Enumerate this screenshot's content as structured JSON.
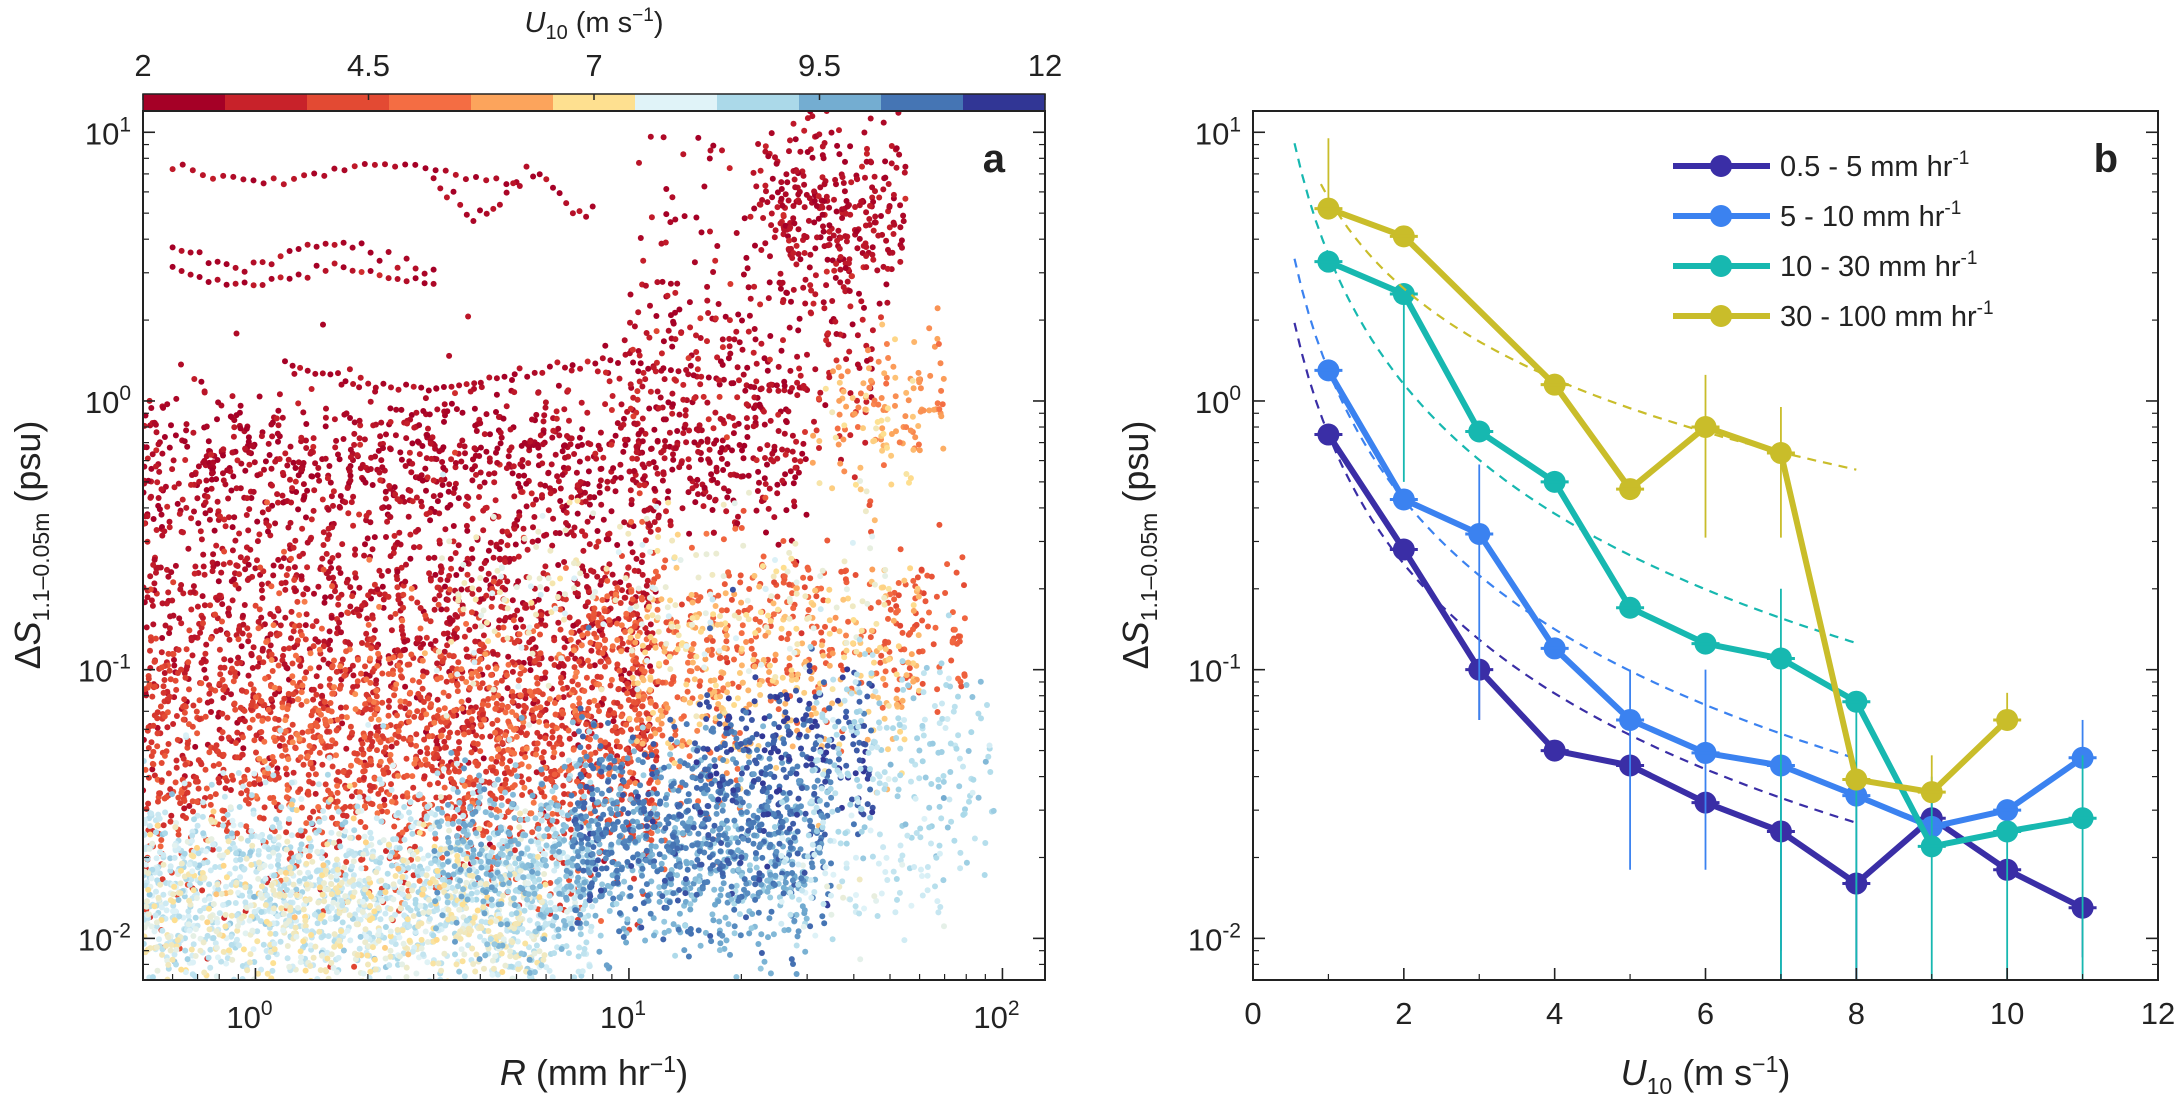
{
  "colorbar": {
    "label": "U10 (m s-1)",
    "label_main": "U",
    "label_sub": "10",
    "label_unit": " (m s",
    "label_sup": "−1",
    "label_close": ")",
    "tick_labels": [
      "2",
      "4.5",
      "7",
      "9.5",
      "12"
    ],
    "tick_values": [
      2,
      4.5,
      7,
      9.5,
      12
    ],
    "colors": [
      "#a50026",
      "#c8222a",
      "#e34a33",
      "#f46d43",
      "#fca45c",
      "#fee090",
      "#e0f3f8",
      "#abd9e9",
      "#74add1",
      "#4575b4",
      "#313695"
    ]
  },
  "chart_data": [
    {
      "panel": "a",
      "type": "scatter",
      "xlabel": "R (mm hr-1)",
      "ylabel": "ΔS1.1–0.05m (psu)",
      "x_scale": "log",
      "y_scale": "log",
      "xlim": [
        0.5,
        130
      ],
      "ylim": [
        0.007,
        12
      ],
      "x_ticks": [
        1,
        10,
        100
      ],
      "x_tick_labels": [
        [
          "10",
          "0"
        ],
        [
          "10",
          "1"
        ],
        [
          "10",
          "2"
        ]
      ],
      "y_ticks": [
        0.01,
        0.1,
        1,
        10
      ],
      "y_tick_labels": [
        [
          "10",
          "-2"
        ],
        [
          "10",
          "-1"
        ],
        [
          "10",
          "0"
        ],
        [
          "10",
          "1"
        ]
      ],
      "color_variable": "U10 (m s-1)",
      "clusters": [
        {
          "u10": 2.2,
          "r_range": [
            0.6,
            5
          ],
          "s_center": 7.0,
          "s_spread": 0.05,
          "n": 35,
          "mode": "track"
        },
        {
          "u10": 2.3,
          "r_range": [
            3,
            8
          ],
          "s_center": 5.8,
          "s_spread": 0.12,
          "n": 25,
          "mode": "track"
        },
        {
          "u10": 2.2,
          "r_range": [
            0.6,
            3
          ],
          "s_center": 3.5,
          "s_spread": 0.08,
          "n": 30,
          "mode": "track"
        },
        {
          "u10": 2.2,
          "r_range": [
            0.6,
            3
          ],
          "s_center": 2.9,
          "s_spread": 0.05,
          "n": 30,
          "mode": "track"
        },
        {
          "u10": 2.3,
          "r_range": [
            10,
            45
          ],
          "s_center": 2.5,
          "s_spread": 0.55,
          "n": 260,
          "mode": "cloud"
        },
        {
          "u10": 2.4,
          "r_range": [
            22,
            55
          ],
          "s_center": 5.0,
          "s_spread": 0.3,
          "n": 260,
          "mode": "cloud"
        },
        {
          "u10": 2.3,
          "r_range": [
            1.2,
            30
          ],
          "s_center": 1.25,
          "s_spread": 0.08,
          "n": 70,
          "mode": "track"
        },
        {
          "u10": 2.3,
          "r_range": [
            0.5,
            30
          ],
          "s_center": 0.6,
          "s_spread": 0.25,
          "n": 900,
          "mode": "cloud"
        },
        {
          "u10": 3.0,
          "r_range": [
            8,
            45
          ],
          "s_center": 1.2,
          "s_spread": 0.3,
          "n": 90,
          "mode": "cloud"
        },
        {
          "u10": 5.6,
          "r_range": [
            35,
            70
          ],
          "s_center": 1.0,
          "s_spread": 0.25,
          "n": 90,
          "mode": "cloud"
        },
        {
          "u10": 6.6,
          "r_range": [
            30,
            60
          ],
          "s_center": 0.75,
          "s_spread": 0.3,
          "n": 50,
          "mode": "cloud"
        },
        {
          "u10": 2.6,
          "r_range": [
            0.5,
            12
          ],
          "s_center": 0.16,
          "s_spread": 0.55,
          "n": 1200,
          "mode": "cloud"
        },
        {
          "u10": 3.8,
          "r_range": [
            0.5,
            12
          ],
          "s_center": 0.05,
          "s_spread": 0.5,
          "n": 1400,
          "mode": "cloud"
        },
        {
          "u10": 5.0,
          "r_range": [
            1,
            20
          ],
          "s_center": 0.06,
          "s_spread": 0.45,
          "n": 500,
          "mode": "cloud"
        },
        {
          "u10": 4.5,
          "r_range": [
            8,
            80
          ],
          "s_center": 0.15,
          "s_spread": 0.3,
          "n": 350,
          "mode": "cloud"
        },
        {
          "u10": 6.5,
          "r_range": [
            10,
            60
          ],
          "s_center": 0.1,
          "s_spread": 0.35,
          "n": 300,
          "mode": "cloud"
        },
        {
          "u10": 7.6,
          "r_range": [
            3,
            50
          ],
          "s_center": 0.18,
          "s_spread": 0.35,
          "n": 200,
          "mode": "cloud"
        },
        {
          "u10": 8.6,
          "r_range": [
            0.5,
            8
          ],
          "s_center": 0.015,
          "s_spread": 0.35,
          "n": 1300,
          "mode": "cloud"
        },
        {
          "u10": 7.5,
          "r_range": [
            0.5,
            6
          ],
          "s_center": 0.012,
          "s_spread": 0.3,
          "n": 700,
          "mode": "cloud"
        },
        {
          "u10": 9.8,
          "r_range": [
            3,
            30
          ],
          "s_center": 0.02,
          "s_spread": 0.35,
          "n": 700,
          "mode": "cloud"
        },
        {
          "u10": 10.9,
          "r_range": [
            7,
            35
          ],
          "s_center": 0.025,
          "s_spread": 0.35,
          "n": 650,
          "mode": "cloud"
        },
        {
          "u10": 11.6,
          "r_range": [
            15,
            45
          ],
          "s_center": 0.05,
          "s_spread": 0.25,
          "n": 220,
          "mode": "cloud"
        },
        {
          "u10": 8.9,
          "r_range": [
            30,
            95
          ],
          "s_center": 0.045,
          "s_spread": 0.35,
          "n": 220,
          "mode": "cloud"
        },
        {
          "u10": 8.3,
          "r_range": [
            25,
            70
          ],
          "s_center": 0.016,
          "s_spread": 0.2,
          "n": 90,
          "mode": "cloud"
        }
      ]
    },
    {
      "panel": "b",
      "type": "line",
      "xlabel": "U10 (m s-1)",
      "ylabel": "ΔS1.1–0.05m (psu)",
      "x_scale": "linear",
      "y_scale": "log",
      "xlim": [
        0,
        12
      ],
      "ylim": [
        0.007,
        12
      ],
      "x_ticks": [
        0,
        2,
        4,
        6,
        8,
        10,
        12
      ],
      "y_ticks": [
        0.01,
        0.1,
        1,
        10
      ],
      "y_tick_labels": [
        [
          "10",
          "-2"
        ],
        [
          "10",
          "-1"
        ],
        [
          "10",
          "0"
        ],
        [
          "10",
          "1"
        ]
      ],
      "series": [
        {
          "name": "0.5 - 5 mm hr-1",
          "name_main": "0.5 - 5 mm hr",
          "name_sup": "-1",
          "color": "#3a2ea6",
          "x": [
            1,
            2,
            3,
            4,
            5,
            6,
            7,
            8,
            9,
            10,
            11
          ],
          "y": [
            0.75,
            0.28,
            0.1,
            0.05,
            0.044,
            0.032,
            0.025,
            0.016,
            0.028,
            0.018,
            0.013
          ],
          "err_low": [
            null,
            null,
            0.065,
            null,
            null,
            null,
            0.009,
            0.007,
            null,
            null,
            0.0085
          ],
          "err_high": [
            null,
            null,
            null,
            null,
            null,
            null,
            null,
            null,
            0.035,
            null,
            null
          ],
          "fit_x": [
            0.55,
            8
          ],
          "fit_a": 0.75,
          "fit_p": 1.6
        },
        {
          "name": "5 - 10 mm hr-1",
          "name_main": "5 - 10 mm hr",
          "name_sup": "-1",
          "color": "#3b82f0",
          "x": [
            1,
            2,
            3,
            4,
            5,
            6,
            7,
            8,
            9,
            10,
            11
          ],
          "y": [
            1.3,
            0.43,
            0.32,
            0.12,
            0.065,
            0.049,
            0.044,
            0.034,
            0.026,
            0.03,
            0.047
          ],
          "err_low": [
            null,
            null,
            0.065,
            null,
            0.018,
            0.018,
            0.007,
            0.007,
            null,
            null,
            null
          ],
          "err_high": [
            null,
            null,
            0.58,
            null,
            0.1,
            0.1,
            null,
            null,
            null,
            null,
            0.065
          ],
          "fit_x": [
            0.55,
            8
          ],
          "fit_a": 1.3,
          "fit_p": 1.6
        },
        {
          "name": "10 - 30 mm hr-1",
          "name_main": "10 - 30 mm hr",
          "name_sup": "-1",
          "color": "#17b8b0",
          "x": [
            1,
            2,
            3,
            4,
            5,
            6,
            7,
            8,
            9,
            10,
            11
          ],
          "y": [
            3.3,
            2.5,
            0.77,
            0.5,
            0.17,
            0.125,
            0.11,
            0.076,
            0.022,
            0.025,
            0.028
          ],
          "err_low": [
            null,
            0.5,
            null,
            null,
            null,
            null,
            0.007,
            0.007,
            0.007,
            0.007,
            0.007
          ],
          "err_high": [
            null,
            null,
            null,
            null,
            null,
            null,
            0.2,
            null,
            0.04,
            null,
            0.048
          ],
          "fit_x": [
            0.55,
            8
          ],
          "fit_a": 3.5,
          "fit_p": 1.6
        },
        {
          "name": "30 - 100 mm hr-1",
          "name_main": "30 - 100 mm hr",
          "name_sup": "-1",
          "color": "#c9bd2a",
          "x": [
            1,
            2,
            4,
            5,
            6,
            7,
            8,
            9,
            10
          ],
          "y": [
            5.2,
            4.1,
            1.15,
            0.47,
            0.8,
            0.64,
            0.039,
            0.035,
            0.065
          ],
          "err_low": [
            null,
            null,
            null,
            null,
            0.31,
            0.31,
            null,
            null,
            null
          ],
          "err_high": [
            9.5,
            null,
            null,
            null,
            1.25,
            0.95,
            null,
            0.048,
            0.082
          ],
          "fit_x": [
            0.9,
            8
          ],
          "fit_a": 5.7,
          "fit_p": 1.12
        }
      ]
    }
  ]
}
